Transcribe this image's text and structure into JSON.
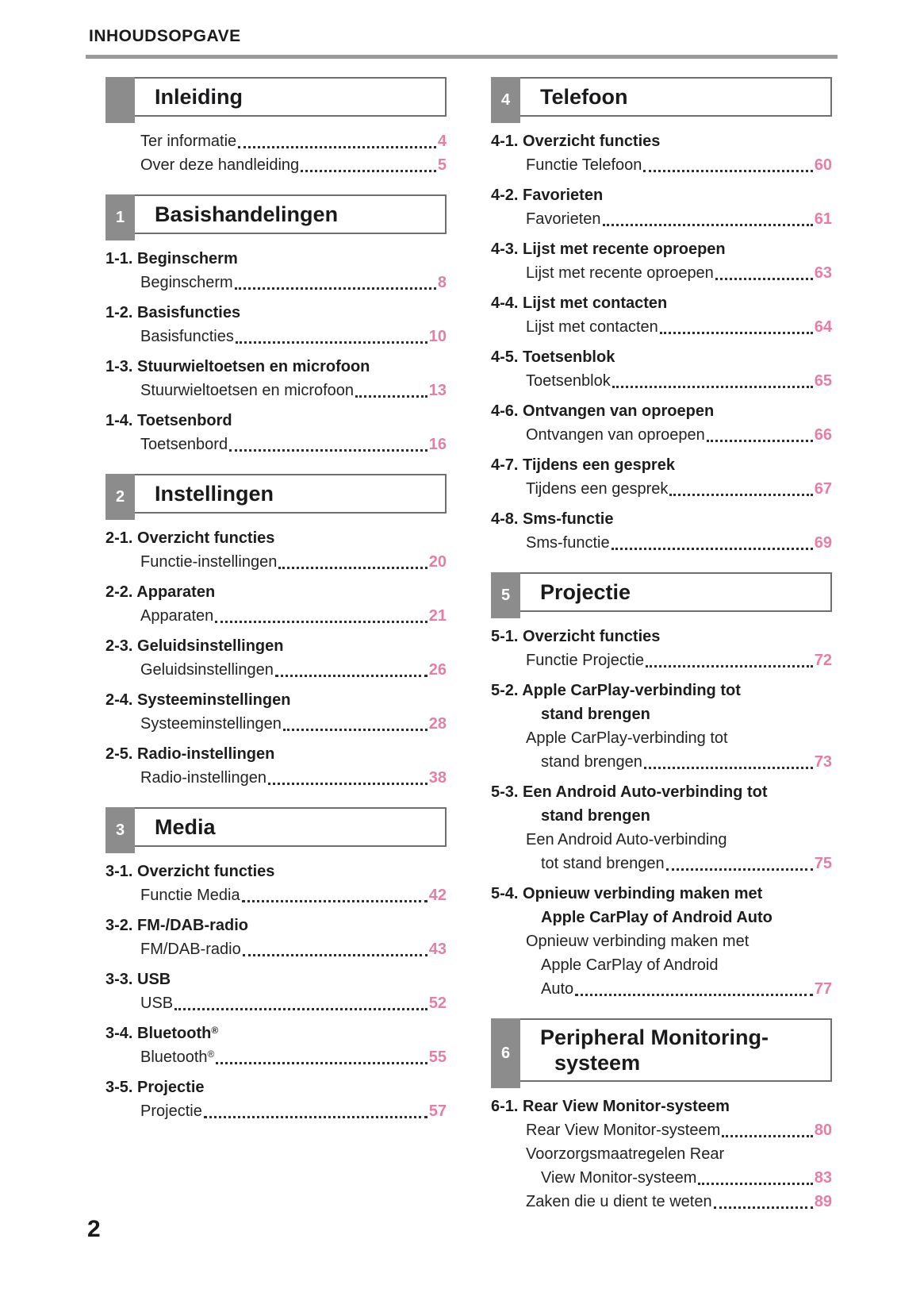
{
  "page": {
    "title": "INHOUDSOPGAVE",
    "page_number": "2"
  },
  "colors": {
    "accent_pink": "#e57ea6",
    "tab_gray": "#8c8c8c",
    "rule_gray": "#9a9a9a",
    "box_border_gray": "#6f6f6f"
  },
  "columns": [
    {
      "sections": [
        {
          "tab_number": "",
          "title_lines": [
            "Inleiding"
          ],
          "entries": [
            {
              "heading_lines": [],
              "sub_items": [
                {
                  "lines": [
                    "Ter informatie"
                  ],
                  "page": "4"
                },
                {
                  "lines": [
                    "Over deze handleiding"
                  ],
                  "page": "5"
                }
              ]
            }
          ]
        },
        {
          "tab_number": "1",
          "title_lines": [
            "Basishandelingen"
          ],
          "entries": [
            {
              "heading_lines": [
                "1-1. Beginscherm"
              ],
              "sub_items": [
                {
                  "lines": [
                    "Beginscherm"
                  ],
                  "page": "8"
                }
              ]
            },
            {
              "heading_lines": [
                "1-2. Basisfuncties"
              ],
              "sub_items": [
                {
                  "lines": [
                    "Basisfuncties"
                  ],
                  "page": "10"
                }
              ]
            },
            {
              "heading_lines": [
                "1-3. Stuurwieltoetsen en microfoon"
              ],
              "sub_items": [
                {
                  "lines": [
                    "Stuurwieltoetsen en microfoon"
                  ],
                  "page": "13"
                }
              ]
            },
            {
              "heading_lines": [
                "1-4. Toetsenbord"
              ],
              "sub_items": [
                {
                  "lines": [
                    "Toetsenbord"
                  ],
                  "page": "16"
                }
              ]
            }
          ]
        },
        {
          "tab_number": "2",
          "title_lines": [
            "Instellingen"
          ],
          "entries": [
            {
              "heading_lines": [
                "2-1. Overzicht functies"
              ],
              "sub_items": [
                {
                  "lines": [
                    "Functie-instellingen"
                  ],
                  "page": "20"
                }
              ]
            },
            {
              "heading_lines": [
                "2-2. Apparaten"
              ],
              "sub_items": [
                {
                  "lines": [
                    "Apparaten"
                  ],
                  "page": "21"
                }
              ]
            },
            {
              "heading_lines": [
                "2-3. Geluidsinstellingen"
              ],
              "sub_items": [
                {
                  "lines": [
                    "Geluidsinstellingen"
                  ],
                  "page": "26"
                }
              ]
            },
            {
              "heading_lines": [
                "2-4. Systeeminstellingen"
              ],
              "sub_items": [
                {
                  "lines": [
                    "Systeeminstellingen"
                  ],
                  "page": "28"
                }
              ]
            },
            {
              "heading_lines": [
                "2-5. Radio-instellingen"
              ],
              "sub_items": [
                {
                  "lines": [
                    "Radio-instellingen"
                  ],
                  "page": "38"
                }
              ]
            }
          ]
        },
        {
          "tab_number": "3",
          "title_lines": [
            "Media"
          ],
          "entries": [
            {
              "heading_lines": [
                "3-1. Overzicht functies"
              ],
              "sub_items": [
                {
                  "lines": [
                    "Functie Media"
                  ],
                  "page": "42"
                }
              ]
            },
            {
              "heading_lines": [
                "3-2. FM-/DAB-radio"
              ],
              "sub_items": [
                {
                  "lines": [
                    "FM/DAB-radio"
                  ],
                  "page": "43"
                }
              ]
            },
            {
              "heading_lines": [
                "3-3. USB"
              ],
              "sub_items": [
                {
                  "lines": [
                    "USB"
                  ],
                  "page": "52"
                }
              ]
            },
            {
              "heading_lines": [
                "3-4. Bluetooth®"
              ],
              "sub_items": [
                {
                  "lines": [
                    "Bluetooth®"
                  ],
                  "page": "55"
                }
              ]
            },
            {
              "heading_lines": [
                "3-5. Projectie"
              ],
              "sub_items": [
                {
                  "lines": [
                    "Projectie"
                  ],
                  "page": "57"
                }
              ]
            }
          ]
        }
      ]
    },
    {
      "sections": [
        {
          "tab_number": "4",
          "title_lines": [
            "Telefoon"
          ],
          "entries": [
            {
              "heading_lines": [
                "4-1. Overzicht functies"
              ],
              "sub_items": [
                {
                  "lines": [
                    "Functie Telefoon"
                  ],
                  "page": "60"
                }
              ]
            },
            {
              "heading_lines": [
                "4-2. Favorieten"
              ],
              "sub_items": [
                {
                  "lines": [
                    "Favorieten"
                  ],
                  "page": "61"
                }
              ]
            },
            {
              "heading_lines": [
                "4-3. Lijst met recente oproepen"
              ],
              "sub_items": [
                {
                  "lines": [
                    "Lijst met recente oproepen"
                  ],
                  "page": "63"
                }
              ]
            },
            {
              "heading_lines": [
                "4-4. Lijst met contacten"
              ],
              "sub_items": [
                {
                  "lines": [
                    "Lijst met contacten"
                  ],
                  "page": "64"
                }
              ]
            },
            {
              "heading_lines": [
                "4-5. Toetsenblok"
              ],
              "sub_items": [
                {
                  "lines": [
                    "Toetsenblok"
                  ],
                  "page": "65"
                }
              ]
            },
            {
              "heading_lines": [
                "4-6. Ontvangen van oproepen"
              ],
              "sub_items": [
                {
                  "lines": [
                    "Ontvangen van oproepen"
                  ],
                  "page": "66"
                }
              ]
            },
            {
              "heading_lines": [
                "4-7. Tijdens een gesprek"
              ],
              "sub_items": [
                {
                  "lines": [
                    "Tijdens een gesprek"
                  ],
                  "page": "67"
                }
              ]
            },
            {
              "heading_lines": [
                "4-8. Sms-functie"
              ],
              "sub_items": [
                {
                  "lines": [
                    "Sms-functie"
                  ],
                  "page": "69"
                }
              ]
            }
          ]
        },
        {
          "tab_number": "5",
          "title_lines": [
            "Projectie"
          ],
          "entries": [
            {
              "heading_lines": [
                "5-1. Overzicht functies"
              ],
              "sub_items": [
                {
                  "lines": [
                    "Functie Projectie"
                  ],
                  "page": "72"
                }
              ]
            },
            {
              "heading_lines": [
                "5-2. Apple CarPlay-verbinding tot",
                "stand brengen"
              ],
              "sub_items": [
                {
                  "lines": [
                    "Apple CarPlay-verbinding tot",
                    "stand brengen"
                  ],
                  "page": "73"
                }
              ]
            },
            {
              "heading_lines": [
                "5-3. Een Android Auto-verbinding tot",
                "stand brengen"
              ],
              "sub_items": [
                {
                  "lines": [
                    "Een Android Auto-verbinding",
                    "tot stand brengen"
                  ],
                  "page": "75"
                }
              ]
            },
            {
              "heading_lines": [
                "5-4. Opnieuw verbinding maken met",
                "Apple CarPlay of Android Auto"
              ],
              "sub_items": [
                {
                  "lines": [
                    "Opnieuw verbinding maken met",
                    "Apple CarPlay of Android",
                    "Auto"
                  ],
                  "page": "77"
                }
              ]
            }
          ]
        },
        {
          "tab_number": "6",
          "title_lines": [
            "Peripheral Monitoring-",
            "systeem"
          ],
          "entries": [
            {
              "heading_lines": [
                "6-1. Rear View Monitor-systeem"
              ],
              "sub_items": [
                {
                  "lines": [
                    "Rear View Monitor-systeem"
                  ],
                  "page": "80"
                },
                {
                  "lines": [
                    "Voorzorgsmaatregelen Rear",
                    "View Monitor-systeem"
                  ],
                  "page": "83"
                },
                {
                  "lines": [
                    "Zaken die u dient te weten"
                  ],
                  "page": "89"
                }
              ]
            }
          ]
        }
      ]
    }
  ]
}
